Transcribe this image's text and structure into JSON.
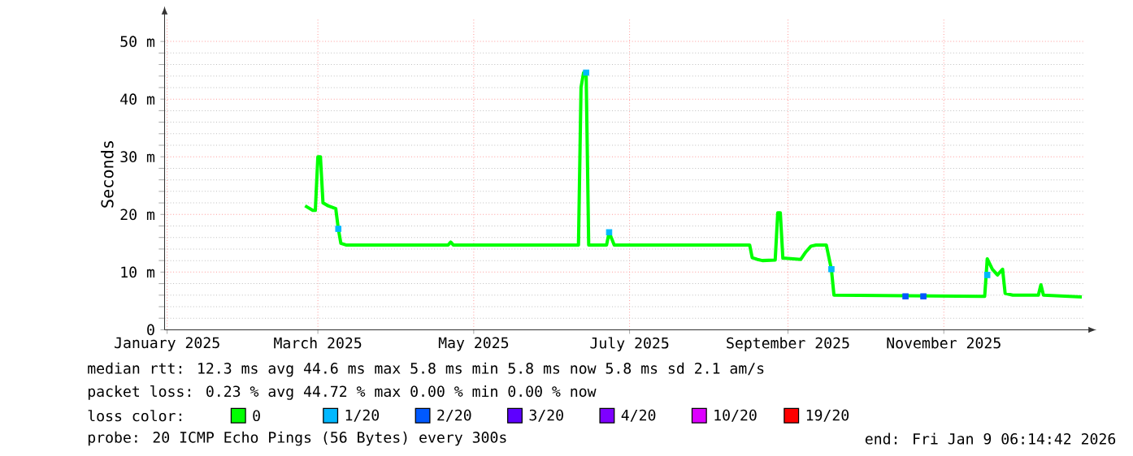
{
  "chart_data": {
    "type": "line",
    "ylabel": "Seconds",
    "legend_title": "loss color:",
    "xlim": [
      "2025-01-14",
      "2026-01-09"
    ],
    "xticks": [
      {
        "value": "2025-01-15",
        "label": "January 2025"
      },
      {
        "value": "2025-03-15",
        "label": "March 2025"
      },
      {
        "value": "2025-05-15",
        "label": "May 2025"
      },
      {
        "value": "2025-07-15",
        "label": "July 2025"
      },
      {
        "value": "2025-09-15",
        "label": "September 2025"
      },
      {
        "value": "2025-11-15",
        "label": "November 2025"
      }
    ],
    "ylim": [
      0,
      54
    ],
    "yticks": [
      0,
      {
        "value": 10,
        "label": "10 m"
      },
      {
        "value": 20,
        "label": "20 m"
      },
      {
        "value": 30,
        "label": "30 m"
      },
      {
        "value": 40,
        "label": "40 m"
      },
      {
        "value": 50,
        "label": "50 m"
      }
    ],
    "grid": true,
    "legend": "bottom",
    "series": [
      {
        "name": "0",
        "color": "#00ff00",
        "x": [
          "2025-03-10",
          "2025-03-13",
          "2025-03-14",
          "2025-03-15",
          "2025-03-16",
          "2025-03-17",
          "2025-03-19",
          "2025-03-22",
          "2025-03-23",
          "2025-03-24",
          "2025-03-26",
          "2025-05-05",
          "2025-05-06",
          "2025-05-07",
          "2025-06-25",
          "2025-06-26",
          "2025-06-27",
          "2025-06-28",
          "2025-06-29",
          "2025-07-06",
          "2025-07-07",
          "2025-07-09",
          "2025-08-31",
          "2025-09-01",
          "2025-09-03",
          "2025-09-05",
          "2025-09-10",
          "2025-09-11",
          "2025-09-12",
          "2025-09-13",
          "2025-09-14",
          "2025-09-20",
          "2025-09-22",
          "2025-09-24",
          "2025-09-26",
          "2025-09-30",
          "2025-10-02",
          "2025-10-03",
          "2025-11-30",
          "2025-12-01",
          "2025-12-02",
          "2025-12-04",
          "2025-12-06",
          "2025-12-08",
          "2025-12-09",
          "2025-12-12",
          "2025-12-22",
          "2025-12-23",
          "2025-12-24",
          "2026-01-08"
        ],
        "values": [
          21.5,
          20.7,
          20.7,
          30,
          30,
          22,
          21.5,
          21,
          17.5,
          15,
          14.7,
          14.7,
          15.2,
          14.7,
          14.7,
          42,
          44.6,
          44.6,
          14.7,
          14.7,
          16.9,
          14.7,
          14.7,
          12.5,
          12.2,
          12.0,
          12.1,
          20.3,
          20.3,
          12.4,
          12.4,
          12.2,
          13.5,
          14.5,
          14.7,
          14.7,
          10.5,
          6.0,
          5.8,
          5.8,
          12.3,
          10.5,
          9.5,
          10.5,
          6.3,
          6.0,
          6.0,
          7.8,
          6.0,
          5.7
        ]
      },
      {
        "name": "1/20",
        "color": "#00b8ff",
        "type": "scatter",
        "marker": "square",
        "x": [
          "2025-03-23",
          "2025-06-28",
          "2025-07-07",
          "2025-10-02",
          "2025-12-02"
        ],
        "values": [
          17.5,
          44.6,
          16.9,
          10.5,
          9.5
        ]
      },
      {
        "name": "2/20",
        "color": "#0059ff",
        "type": "scatter",
        "marker": "square",
        "x": [
          "2025-10-31",
          "2025-11-07"
        ],
        "values": [
          5.8,
          5.8
        ]
      },
      {
        "name": "3/20",
        "color": "#5e00ff",
        "type": "scatter",
        "marker": "square"
      },
      {
        "name": "4/20",
        "color": "#7e00ff",
        "type": "scatter",
        "marker": "square"
      },
      {
        "name": "10/20",
        "color": "#dd00ff",
        "type": "scatter",
        "marker": "square"
      },
      {
        "name": "19/20",
        "color": "#ff0000",
        "type": "scatter",
        "marker": "square"
      }
    ],
    "annotations": [
      "median rtt: 12.3 ms avg 44.6 ms max 5.8 ms min 5.8 ms now 5.8 ms sd 2.1 am/s",
      "packet loss: 0.23 % avg 44.72 % max 0.00 % min 0.00 % now",
      "probe: 20 ICMP Echo Pings (56 Bytes) every 300s",
      "end: Fri Jan 9 06:14:42 2026"
    ]
  }
}
